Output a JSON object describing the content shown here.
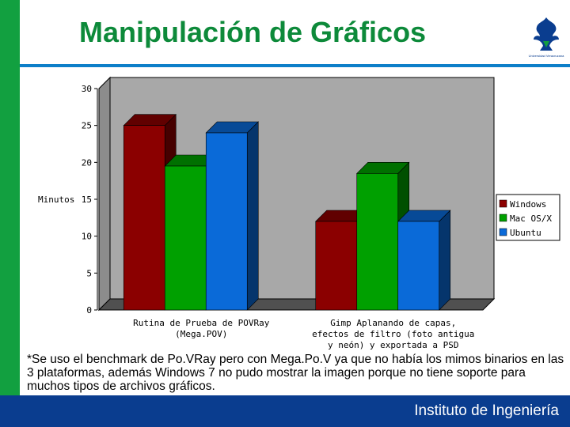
{
  "slide": {
    "title": "Manipulación de Gráficos",
    "note": "*Se uso el benchmark de Po.VRay pero con Mega.Po.V ya que no había los mimos binarios en las 3 plataformas, además Windows 7 no pudo mostrar la imagen porque no tiene soporte para muchos tipos de archivos gráficos.",
    "footer": "Instituto de Ingeniería",
    "logo_icon": "university-crest-icon",
    "logo_caption": "Universidad Veracruzana"
  },
  "colors": {
    "accent_green": "#0d8a3a",
    "footer_blue": "#0a3d8f",
    "rule_blue": "#0d7fc9",
    "windows": "#8b0000",
    "mac": "#00a000",
    "ubuntu": "#0a6ad8"
  },
  "chart_data": {
    "type": "bar",
    "ylabel": "Minutos",
    "ylim": [
      0,
      30
    ],
    "yticks": [
      0,
      5,
      10,
      15,
      20,
      25,
      30
    ],
    "categories": [
      [
        "Rutina de Prueba de POVRay",
        "(Mega.POV)"
      ],
      [
        "Gimp Aplanando de capas,",
        "efectos de filtro (foto antigua",
        "y neón) y exportada a PSD"
      ]
    ],
    "series": [
      {
        "name": "Windows",
        "color": "#8b0000",
        "values": [
          25,
          12
        ]
      },
      {
        "name": "Mac OS/X",
        "color": "#00a000",
        "values": [
          19.5,
          18.5
        ]
      },
      {
        "name": "Ubuntu",
        "color": "#0a6ad8",
        "values": [
          24,
          12
        ]
      }
    ],
    "legend_position": "right",
    "grid": false,
    "style": "3d"
  }
}
